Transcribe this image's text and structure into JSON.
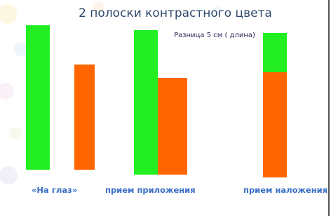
{
  "header": {
    "title": "2 полоски контрастного цвета",
    "subtitle": "Разница 5 см ( длина)"
  },
  "labels": [
    "«На глаз»",
    "прием приложения",
    "прием наложения"
  ]
}
